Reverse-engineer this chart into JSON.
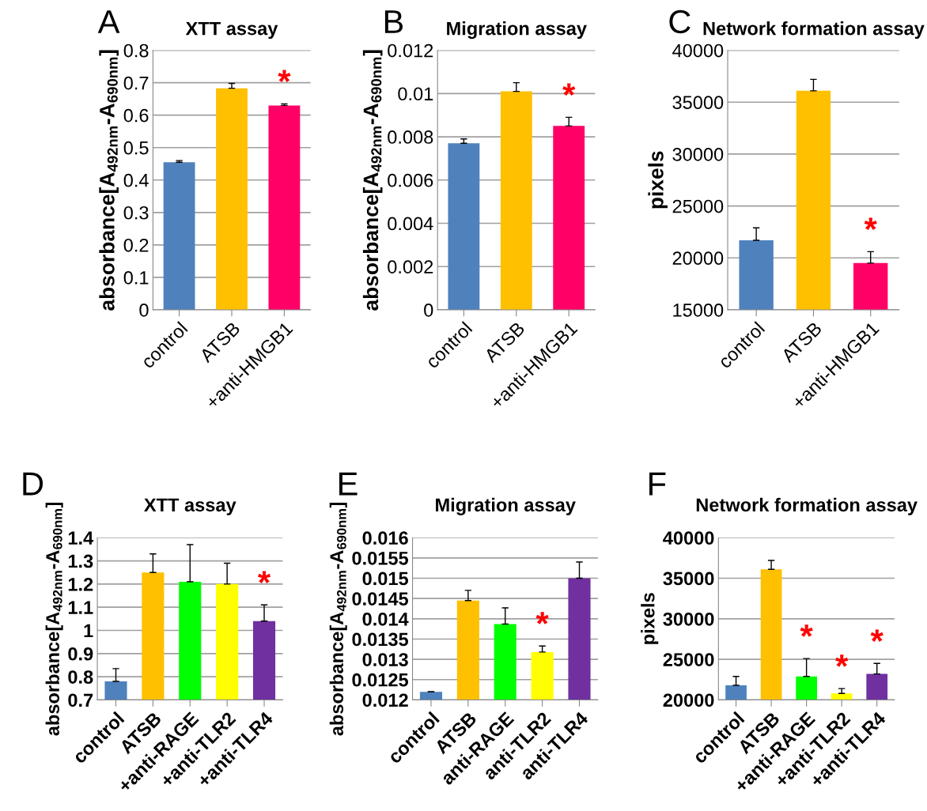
{
  "chart_data": [
    {
      "type": "bar",
      "title": "XTT assay",
      "ylabel": "absorbance[A$_{492nm}$-A$_{690nm}$]",
      "categories": [
        "control",
        "ATSB",
        "+anti-HMGB1"
      ],
      "values": [
        0.455,
        0.683,
        0.63
      ],
      "errors": [
        0.005,
        0.015,
        0.005
      ],
      "colors": [
        "#4f81bd",
        "#ffc000",
        "#ff0066"
      ],
      "ylim": [
        0,
        0.8
      ],
      "yticks": [
        0,
        0.1,
        0.2,
        0.3,
        0.4,
        0.5,
        0.6,
        0.7,
        0.8
      ],
      "grid": "y",
      "legend": false,
      "annotations": [
        "A",
        {
          "text": "*",
          "x": "+anti-HMGB1",
          "y": 0.63
        }
      ]
    },
    {
      "type": "bar",
      "title": "Migration assay",
      "ylabel": "absorbance[A$_{492nm}$-A$_{690nm}$]",
      "categories": [
        "control",
        "ATSB",
        "+anti-HMGB1"
      ],
      "values": [
        0.0077,
        0.0101,
        0.0085
      ],
      "errors": [
        0.0002,
        0.0004,
        0.0004
      ],
      "colors": [
        "#4f81bd",
        "#ffc000",
        "#ff0066"
      ],
      "ylim": [
        0,
        0.012
      ],
      "yticks": [
        0,
        0.002,
        0.004,
        0.006,
        0.008,
        0.01,
        0.012
      ],
      "grid": "y",
      "legend": false,
      "annotations": [
        "B",
        {
          "text": "*",
          "x": "+anti-HMGB1",
          "y": 0.0085
        }
      ]
    },
    {
      "type": "bar",
      "title": "Network formation assay",
      "ylabel": "pixels",
      "categories": [
        "control",
        "ATSB",
        "+anti-HMGB1"
      ],
      "values": [
        21700,
        36100,
        19500
      ],
      "errors": [
        1200,
        1100,
        1100
      ],
      "colors": [
        "#4f81bd",
        "#ffc000",
        "#ff0066"
      ],
      "ylim": [
        15000,
        40000
      ],
      "yticks": [
        15000,
        20000,
        25000,
        30000,
        35000,
        40000
      ],
      "grid": "y",
      "legend": false,
      "annotations": [
        "C",
        {
          "text": "*",
          "x": "+anti-HMGB1",
          "y": 19500
        }
      ]
    },
    {
      "type": "bar",
      "title": "XTT assay",
      "ylabel": "absorbance[A$_{492nm}$-A$_{690nm}$]",
      "categories": [
        "control",
        "ATSB",
        "+anti-RAGE",
        "+anti-TLR2",
        "+anti-TLR4"
      ],
      "values": [
        0.78,
        1.25,
        1.21,
        1.2,
        1.04
      ],
      "errors": [
        0.055,
        0.08,
        0.16,
        0.09,
        0.07
      ],
      "colors": [
        "#4f81bd",
        "#ffc000",
        "#00ff00",
        "#ffff00",
        "#7030a0"
      ],
      "ylim": [
        0.7,
        1.4
      ],
      "yticks": [
        0.7,
        0.8,
        0.9,
        1,
        1.1,
        1.2,
        1.3,
        1.4
      ],
      "grid": "y",
      "legend": false,
      "annotations": [
        "D",
        {
          "text": "*",
          "x": "+anti-TLR4",
          "y": 1.04
        }
      ]
    },
    {
      "type": "bar",
      "title": "Migration assay",
      "ylabel": "absorbance[A$_{492nm}$-A$_{690nm}$]",
      "categories": [
        "control",
        "ATSB",
        "anti-RAGE",
        "anti-TLR2",
        "anti-TLR4"
      ],
      "values": [
        0.0122,
        0.01445,
        0.01387,
        0.01318,
        0.015
      ],
      "errors": [
        0,
        0.00025,
        0.0004,
        0.00015,
        0.0004
      ],
      "colors": [
        "#4f81bd",
        "#ffc000",
        "#00ff00",
        "#ffff00",
        "#7030a0"
      ],
      "ylim": [
        0.012,
        0.016
      ],
      "yticks": [
        0.012,
        0.0125,
        0.013,
        0.0135,
        0.014,
        0.0145,
        0.015,
        0.0155,
        0.016
      ],
      "grid": "y",
      "legend": false,
      "annotations": [
        "E",
        {
          "text": "*",
          "x": "anti-TLR2",
          "y": 0.01318
        }
      ]
    },
    {
      "type": "bar",
      "title": "Network formation assay",
      "ylabel": "pixels",
      "categories": [
        "control",
        "ATSB",
        "+anti-RAGE",
        "+anti-TLR2",
        "+anti-TLR4"
      ],
      "values": [
        21800,
        36100,
        22900,
        20800,
        23200
      ],
      "errors": [
        1100,
        1100,
        2200,
        600,
        1300
      ],
      "colors": [
        "#4f81bd",
        "#ffc000",
        "#00ff00",
        "#ffff00",
        "#7030a0"
      ],
      "ylim": [
        20000,
        40000
      ],
      "yticks": [
        20000,
        25000,
        30000,
        35000,
        40000
      ],
      "grid": "y",
      "legend": false,
      "annotations": [
        "F",
        {
          "text": "*",
          "x": "+anti-RAGE",
          "y": 22900
        },
        {
          "text": "*",
          "x": "+anti-TLR2",
          "y": 20800
        },
        {
          "text": "*",
          "x": "+anti-TLR4",
          "y": 23200
        }
      ]
    }
  ]
}
